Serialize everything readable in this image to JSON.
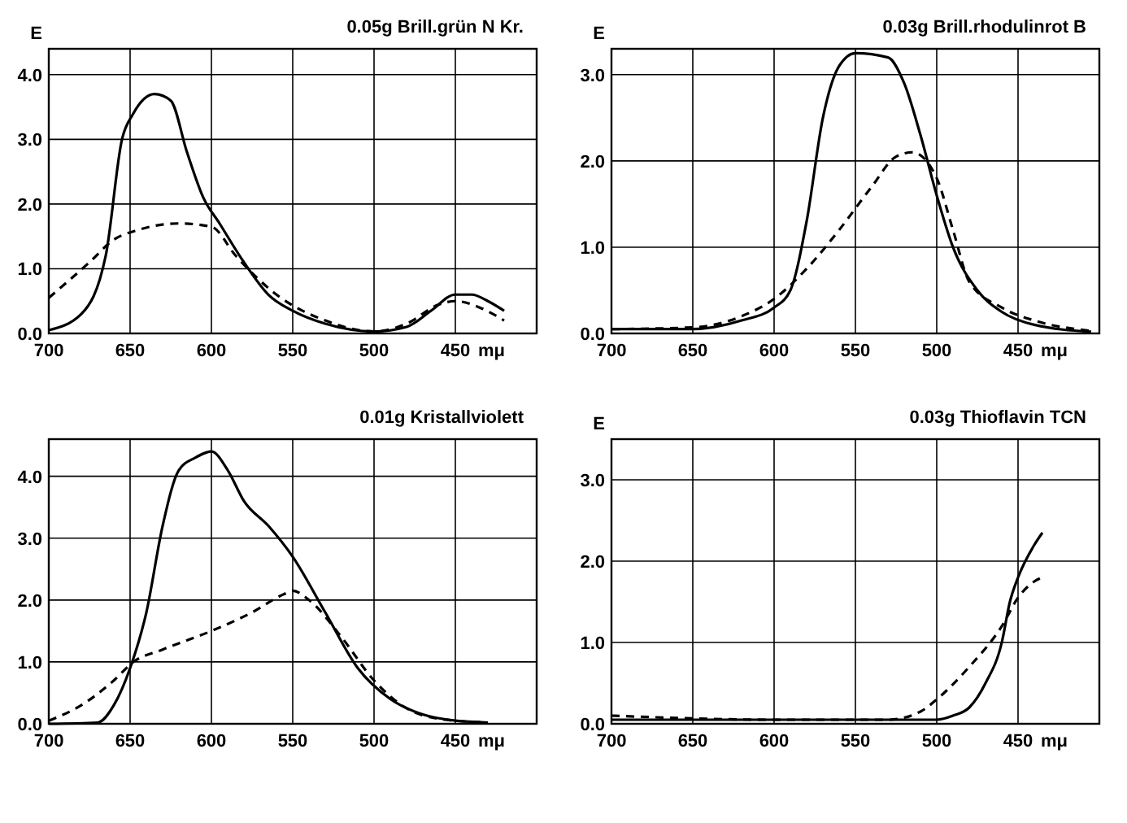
{
  "chart_data": [
    {
      "type": "line",
      "ylabel": "E",
      "xlabel": "mμ",
      "annotations": [
        "0.05g Brill.grün N Kr."
      ],
      "xlim": [
        700,
        400
      ],
      "ylim": [
        0,
        4.4
      ],
      "xticks": [
        700,
        650,
        600,
        550,
        500,
        450
      ],
      "yticks": [
        {
          "value": 0,
          "label": "0.0"
        },
        {
          "value": 1,
          "label": "1.0"
        },
        {
          "value": 2,
          "label": "2.0"
        },
        {
          "value": 3,
          "label": "3.0"
        },
        {
          "value": 4,
          "label": "4.0"
        }
      ],
      "grid": true,
      "series": [
        {
          "color": "#000000",
          "line_style": "dashed",
          "x": [
            700,
            675,
            660,
            645,
            620,
            600,
            585,
            560,
            530,
            500,
            480,
            460,
            450,
            435,
            420
          ],
          "values": [
            0.55,
            1.1,
            1.45,
            1.6,
            1.7,
            1.65,
            1.2,
            0.6,
            0.2,
            0.03,
            0.15,
            0.45,
            0.5,
            0.4,
            0.2
          ]
        },
        {
          "color": "#000000",
          "line_style": "solid",
          "x": [
            700,
            680,
            665,
            655,
            648,
            635,
            625,
            615,
            605,
            595,
            580,
            565,
            550,
            530,
            500,
            480,
            465,
            450,
            440,
            430,
            420
          ],
          "values": [
            0.05,
            0.3,
            1.2,
            3.0,
            3.4,
            3.7,
            3.6,
            2.8,
            2.1,
            1.7,
            1.1,
            0.6,
            0.35,
            0.15,
            0.03,
            0.1,
            0.35,
            0.6,
            0.6,
            0.5,
            0.35
          ]
        }
      ]
    },
    {
      "type": "line",
      "ylabel": "E",
      "xlabel": "mμ",
      "annotations": [
        "0.03g Brill.rhodulinrot B"
      ],
      "xlim": [
        700,
        400
      ],
      "ylim": [
        0,
        3.3
      ],
      "xticks": [
        700,
        650,
        600,
        550,
        500,
        450
      ],
      "yticks": [
        {
          "value": 0,
          "label": "0.0"
        },
        {
          "value": 1,
          "label": "1.0"
        },
        {
          "value": 2,
          "label": "2.0"
        },
        {
          "value": 3,
          "label": "3.0"
        }
      ],
      "grid": true,
      "series": [
        {
          "color": "#000000",
          "line_style": "dashed",
          "x": [
            700,
            650,
            620,
            600,
            580,
            560,
            540,
            525,
            515,
            500,
            490,
            480,
            460,
            440,
            405
          ],
          "values": [
            0.05,
            0.07,
            0.2,
            0.4,
            0.75,
            1.2,
            1.7,
            2.05,
            2.1,
            1.8,
            1.2,
            0.6,
            0.3,
            0.15,
            0.03
          ]
        },
        {
          "color": "#000000",
          "line_style": "solid",
          "x": [
            700,
            650,
            620,
            600,
            590,
            580,
            570,
            560,
            550,
            530,
            520,
            510,
            500,
            490,
            475,
            460,
            440,
            405
          ],
          "values": [
            0.05,
            0.05,
            0.15,
            0.3,
            0.5,
            1.3,
            2.5,
            3.1,
            3.25,
            3.2,
            2.9,
            2.3,
            1.6,
            1.0,
            0.5,
            0.25,
            0.1,
            0.02
          ]
        }
      ]
    },
    {
      "type": "line",
      "xlabel": "mμ",
      "annotations": [
        "0.01g Kristallviolett"
      ],
      "xlim": [
        700,
        400
      ],
      "ylim": [
        0,
        4.6
      ],
      "xticks": [
        700,
        650,
        600,
        550,
        500,
        450
      ],
      "yticks": [
        {
          "value": 0,
          "label": "0.0"
        },
        {
          "value": 1,
          "label": "1.0"
        },
        {
          "value": 2,
          "label": "2.0"
        },
        {
          "value": 3,
          "label": "3.0"
        },
        {
          "value": 4,
          "label": "4.0"
        }
      ],
      "grid": true,
      "series": [
        {
          "color": "#000000",
          "line_style": "dashed",
          "x": [
            700,
            680,
            660,
            648,
            630,
            600,
            575,
            555,
            550,
            540,
            520,
            500,
            480,
            460,
            430
          ],
          "values": [
            0.05,
            0.3,
            0.7,
            1.0,
            1.2,
            1.5,
            1.8,
            2.1,
            2.15,
            2.0,
            1.4,
            0.7,
            0.25,
            0.08,
            0.02
          ]
        },
        {
          "color": "#000000",
          "line_style": "solid",
          "x": [
            700,
            670,
            660,
            650,
            640,
            630,
            620,
            610,
            600,
            590,
            580,
            565,
            550,
            530,
            510,
            490,
            470,
            450,
            430
          ],
          "values": [
            0,
            0.02,
            0.3,
            0.9,
            1.8,
            3.2,
            4.1,
            4.3,
            4.4,
            4.1,
            3.6,
            3.2,
            2.7,
            1.8,
            0.9,
            0.4,
            0.15,
            0.05,
            0.02
          ]
        }
      ]
    },
    {
      "type": "line",
      "ylabel": "E",
      "xlabel": "mμ",
      "annotations": [
        "0.03g Thioflavin TCN"
      ],
      "xlim": [
        700,
        400
      ],
      "ylim": [
        0,
        3.5
      ],
      "xticks": [
        700,
        650,
        600,
        550,
        500,
        450
      ],
      "yticks": [
        {
          "value": 0,
          "label": "0.0"
        },
        {
          "value": 1,
          "label": "1.0"
        },
        {
          "value": 2,
          "label": "2.0"
        },
        {
          "value": 3,
          "label": "3.0"
        }
      ],
      "grid": true,
      "series": [
        {
          "color": "#000000",
          "line_style": "dashed",
          "x": [
            700,
            600,
            530,
            510,
            500,
            480,
            460,
            450,
            440,
            435
          ],
          "values": [
            0.1,
            0.05,
            0.05,
            0.15,
            0.3,
            0.7,
            1.2,
            1.55,
            1.75,
            1.8
          ]
        },
        {
          "color": "#000000",
          "line_style": "solid",
          "x": [
            700,
            600,
            520,
            500,
            490,
            480,
            470,
            460,
            455,
            450,
            440,
            435
          ],
          "values": [
            0.05,
            0.05,
            0.05,
            0.05,
            0.1,
            0.2,
            0.5,
            1.0,
            1.5,
            1.8,
            2.2,
            2.35
          ]
        }
      ]
    }
  ]
}
